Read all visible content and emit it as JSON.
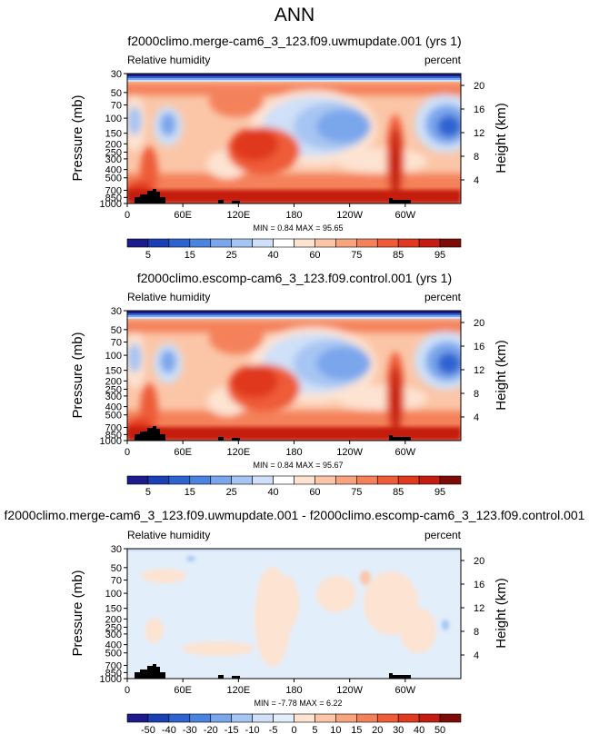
{
  "page_title": "ANN",
  "chart_data": [
    {
      "type": "contour",
      "title": "f2000climo.merge-cam6_3_123.f09.uwmupdate.001 (yrs 1)",
      "left_label": "Relative humidity",
      "right_label": "percent",
      "ylabel": "Pressure (mb)",
      "ylabel_right": "Height (km)",
      "x_ticks": [
        "0",
        "60E",
        "120E",
        "180",
        "120W",
        "60W"
      ],
      "y_ticks": [
        "1000",
        "850",
        "700",
        "500",
        "400",
        "300",
        "250",
        "200",
        "150",
        "100",
        "70",
        "50",
        "30"
      ],
      "height_ticks": [
        "4",
        "8",
        "12",
        "16",
        "20"
      ],
      "stats_text": "MIN =    0.84   MAX =   95.65",
      "min": 0.84,
      "max": 95.65,
      "colorbar_labels": [
        "5",
        "15",
        "25",
        "40",
        "60",
        "75",
        "85",
        "95"
      ],
      "colors": [
        "#1c1b8c",
        "#1b3fb4",
        "#2e63d0",
        "#4b84e0",
        "#7aa6ec",
        "#a6c5f2",
        "#cfe0f8",
        "#ffffff",
        "#fde3d2",
        "#fbc6a8",
        "#f8a47e",
        "#f4815a",
        "#ee5c38",
        "#e0391e",
        "#c41c10",
        "#7d0c06"
      ]
    },
    {
      "type": "contour",
      "title": "f2000climo.escomp-cam6_3_123.f09.control.001 (yrs 1)",
      "left_label": "Relative humidity",
      "right_label": "percent",
      "ylabel": "Pressure (mb)",
      "ylabel_right": "Height (km)",
      "x_ticks": [
        "0",
        "60E",
        "120E",
        "180",
        "120W",
        "60W"
      ],
      "y_ticks": [
        "1000",
        "850",
        "700",
        "500",
        "400",
        "300",
        "250",
        "200",
        "150",
        "100",
        "70",
        "50",
        "30"
      ],
      "height_ticks": [
        "4",
        "8",
        "12",
        "16",
        "20"
      ],
      "stats_text": "MIN =    0.84   MAX =   95.67",
      "min": 0.84,
      "max": 95.67,
      "colorbar_labels": [
        "5",
        "15",
        "25",
        "40",
        "60",
        "75",
        "85",
        "95"
      ],
      "colors": [
        "#1c1b8c",
        "#1b3fb4",
        "#2e63d0",
        "#4b84e0",
        "#7aa6ec",
        "#a6c5f2",
        "#cfe0f8",
        "#ffffff",
        "#fde3d2",
        "#fbc6a8",
        "#f8a47e",
        "#f4815a",
        "#ee5c38",
        "#e0391e",
        "#c41c10",
        "#7d0c06"
      ]
    },
    {
      "type": "contour",
      "title": "f2000climo.merge-cam6_3_123.f09.uwmupdate.001 - f2000climo.escomp-cam6_3_123.f09.control.001",
      "left_label": "Relative humidity",
      "right_label": "percent",
      "ylabel": "Pressure (mb)",
      "ylabel_right": "Height (km)",
      "x_ticks": [
        "0",
        "60E",
        "120E",
        "180",
        "120W",
        "60W"
      ],
      "y_ticks": [
        "1000",
        "850",
        "700",
        "500",
        "400",
        "300",
        "250",
        "200",
        "150",
        "100",
        "70",
        "50",
        "30"
      ],
      "height_ticks": [
        "4",
        "8",
        "12",
        "16",
        "20"
      ],
      "stats_text": "MIN =   -7.78   MAX =    6.22",
      "min": -7.78,
      "max": 6.22,
      "colorbar_labels": [
        "-50",
        "-40",
        "-30",
        "-20",
        "-15",
        "-10",
        "-5",
        "0",
        "5",
        "10",
        "15",
        "20",
        "30",
        "40",
        "50"
      ],
      "colors": [
        "#1c1b8c",
        "#1b3fb4",
        "#2e63d0",
        "#4b84e0",
        "#7aa6ec",
        "#a6c5f2",
        "#cfe0f8",
        "#e3eefb",
        "#fde3d2",
        "#fbc6a8",
        "#f8a47e",
        "#f4815a",
        "#ee5c38",
        "#e0391e",
        "#c41c10",
        "#7d0c06"
      ]
    }
  ]
}
